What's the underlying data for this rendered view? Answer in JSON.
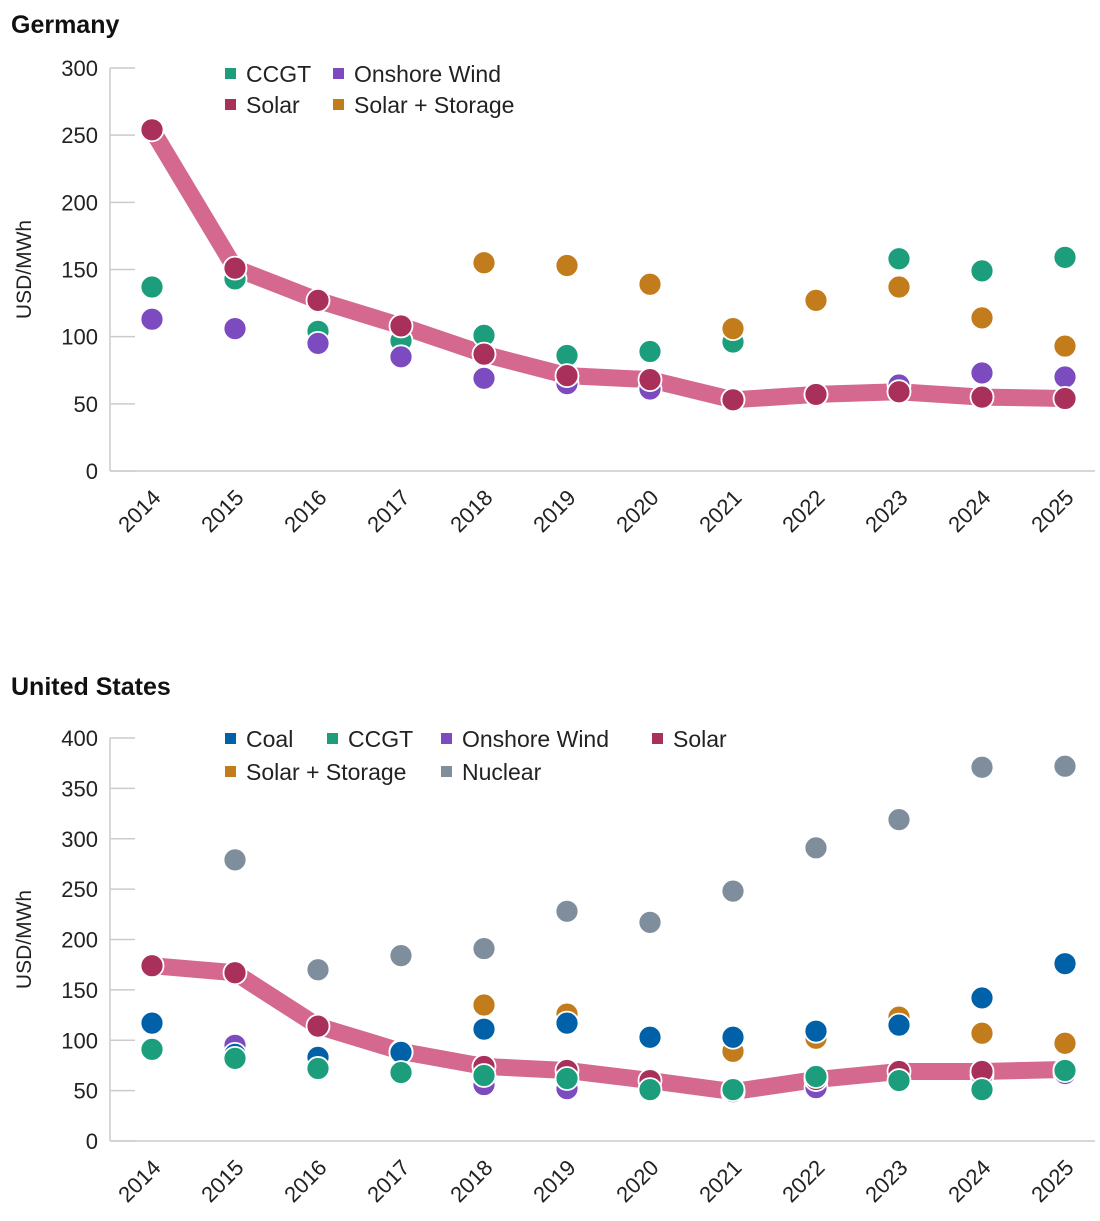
{
  "chart_data": [
    {
      "type": "scatter",
      "title": "Germany",
      "ylabel": "USD/MWh",
      "xlabel": "",
      "ylim": [
        0,
        300
      ],
      "yticks": [
        0,
        50,
        100,
        150,
        200,
        250,
        300
      ],
      "categories": [
        "2014",
        "2015",
        "2016",
        "2017",
        "2018",
        "2019",
        "2020",
        "2021",
        "2022",
        "2023",
        "2024",
        "2025"
      ],
      "legend": "top-left",
      "line_series": "Solar",
      "line_color": "#d4688e",
      "series": [
        {
          "name": "CCGT",
          "color": "#1c9e7c",
          "values": [
            137,
            143,
            104,
            97,
            101,
            86,
            89,
            96,
            null,
            158,
            149,
            159
          ]
        },
        {
          "name": "Onshore Wind",
          "color": "#7b4bbf",
          "values": [
            113,
            106,
            95,
            85,
            69,
            65,
            61,
            53,
            57,
            64,
            73,
            70
          ]
        },
        {
          "name": "Solar",
          "color": "#a8305a",
          "values": [
            254,
            151,
            127,
            108,
            87,
            71,
            68,
            53,
            57,
            59,
            55,
            54
          ]
        },
        {
          "name": "Solar + Storage",
          "color": "#c27c1c",
          "values": [
            null,
            null,
            null,
            null,
            155,
            153,
            139,
            106,
            127,
            137,
            114,
            93
          ]
        }
      ],
      "legend_order": [
        "CCGT",
        "Onshore Wind",
        "Solar",
        "Solar + Storage"
      ]
    },
    {
      "type": "scatter",
      "title": "United States",
      "ylabel": "USD/MWh",
      "xlabel": "",
      "ylim": [
        0,
        400
      ],
      "yticks": [
        0,
        50,
        100,
        150,
        200,
        250,
        300,
        350,
        400
      ],
      "categories": [
        "2014",
        "2015",
        "2016",
        "2017",
        "2018",
        "2019",
        "2020",
        "2021",
        "2022",
        "2023",
        "2024",
        "2025"
      ],
      "legend": "top-left",
      "line_series": "Solar",
      "line_color": "#d4688e",
      "series": [
        {
          "name": "Nuclear",
          "color": "#7f8e9c",
          "values": [
            null,
            279,
            170,
            184,
            191,
            228,
            217,
            248,
            291,
            319,
            371,
            372
          ]
        },
        {
          "name": "Solar + Storage",
          "color": "#c27c1c",
          "values": [
            null,
            null,
            null,
            null,
            135,
            126,
            null,
            89,
            102,
            123,
            107,
            97
          ]
        },
        {
          "name": "Onshore Wind",
          "color": "#7b4bbf",
          "values": [
            null,
            95,
            null,
            88,
            56,
            52,
            null,
            48,
            53,
            null,
            65,
            67
          ]
        },
        {
          "name": "Solar",
          "color": "#a8305a",
          "values": [
            174,
            167,
            114,
            89,
            74,
            70,
            60,
            49,
            61,
            69,
            69,
            71
          ]
        },
        {
          "name": "Coal",
          "color": "#0060a8",
          "values": [
            117,
            86,
            83,
            88,
            111,
            117,
            103,
            103,
            109,
            115,
            142,
            176
          ]
        },
        {
          "name": "CCGT",
          "color": "#1c9e7c",
          "values": [
            91,
            82,
            72,
            68,
            65,
            62,
            51,
            51,
            64,
            60,
            51,
            70
          ]
        }
      ],
      "legend_order": [
        "Coal",
        "CCGT",
        "Onshore Wind",
        "Solar",
        "Solar + Storage",
        "Nuclear"
      ]
    }
  ]
}
